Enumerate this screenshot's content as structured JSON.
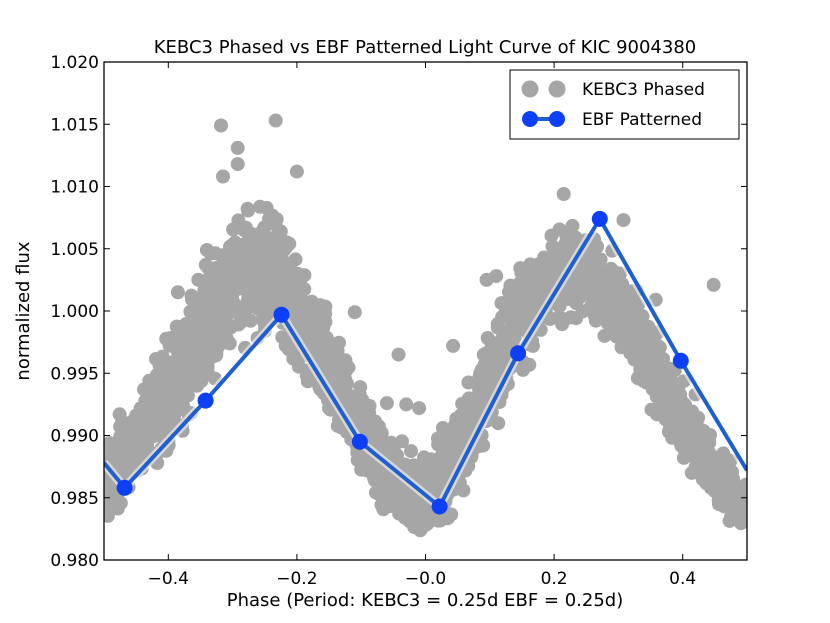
{
  "chart_data": {
    "type": "scatter",
    "title": "KEBC3 Phased vs EBF Patterned Light Curve of KIC 9004380",
    "xlabel": "Phase (Period: KEBC3 = 0.25d EBF = 0.25d)",
    "ylabel": "normalized flux",
    "xlim": [
      -0.5,
      0.5
    ],
    "ylim": [
      0.98,
      1.02
    ],
    "xticks": [
      -0.4,
      -0.2,
      0.0,
      0.2,
      0.4
    ],
    "xtick_labels": [
      "−0.4",
      "−0.2",
      "−0.0",
      "0.2",
      "0.4"
    ],
    "yticks": [
      0.98,
      0.985,
      0.99,
      0.995,
      1.0,
      1.005,
      1.01,
      1.015,
      1.02
    ],
    "ytick_labels": [
      "0.980",
      "0.985",
      "0.990",
      "0.995",
      "1.000",
      "1.005",
      "1.010",
      "1.015",
      "1.020"
    ],
    "legend_position": "top-right",
    "series": [
      {
        "name": "KEBC3 Phased",
        "kind": "scatter",
        "color": "#a6a6a6",
        "band": {
          "x": [
            -0.5,
            -0.45,
            -0.4,
            -0.35,
            -0.3,
            -0.26,
            -0.22,
            -0.18,
            -0.14,
            -0.1,
            -0.06,
            -0.02,
            0.0,
            0.02,
            0.06,
            0.1,
            0.14,
            0.18,
            0.22,
            0.26,
            0.3,
            0.34,
            0.38,
            0.42,
            0.46,
            0.5
          ],
          "low": [
            0.9815,
            0.984,
            0.9875,
            0.991,
            0.9945,
            0.9965,
            0.9955,
            0.9925,
            0.989,
            0.9855,
            0.9825,
            0.981,
            0.9808,
            0.9815,
            0.9845,
            0.989,
            0.993,
            0.9965,
            0.998,
            0.998,
            0.996,
            0.9925,
            0.989,
            0.9855,
            0.9825,
            0.9815
          ],
          "high": [
            0.991,
            0.9945,
            0.9995,
            1.005,
            1.0095,
            1.0105,
            1.0085,
            1.0035,
            0.9995,
            0.995,
            0.991,
            0.9895,
            0.989,
            0.9905,
            0.9945,
            0.9995,
            1.0045,
            1.0075,
            1.008,
            1.0075,
            1.0055,
            1.0015,
            0.997,
            0.9935,
            0.9895,
            0.987
          ]
        },
        "outliers": [
          {
            "x": -0.318,
            "y": 1.0149
          },
          {
            "x": -0.233,
            "y": 1.0153
          },
          {
            "x": -0.292,
            "y": 1.0131
          },
          {
            "x": -0.292,
            "y": 1.0118
          },
          {
            "x": -0.2,
            "y": 1.0112
          },
          {
            "x": -0.315,
            "y": 1.0108
          },
          {
            "x": -0.25,
            "y": 0.9984
          },
          {
            "x": -0.042,
            "y": 0.9965
          },
          {
            "x": 0.043,
            "y": 0.9972
          },
          {
            "x": 0.215,
            "y": 1.0094
          },
          {
            "x": 0.308,
            "y": 1.0073
          },
          {
            "x": 0.448,
            "y": 1.0021
          },
          {
            "x": -0.06,
            "y": 0.9926
          },
          {
            "x": -0.03,
            "y": 0.9925
          },
          {
            "x": -0.01,
            "y": 0.9922
          },
          {
            "x": -0.11,
            "y": 0.9999
          },
          {
            "x": 0.11,
            "y": 1.0028
          },
          {
            "x": 0.095,
            "y": 1.0025
          },
          {
            "x": -0.385,
            "y": 1.0015
          },
          {
            "x": -0.34,
            "y": 1.0049
          },
          {
            "x": 0.358,
            "y": 1.0009
          },
          {
            "x": 0.42,
            "y": 0.9933
          }
        ]
      },
      {
        "name": "EBF Patterned",
        "kind": "line+markers",
        "color": "#0d3ff5",
        "line_color": "#1f5fd0",
        "x": [
          -0.5,
          -0.468,
          -0.342,
          -0.224,
          -0.102,
          0.022,
          0.144,
          0.271,
          0.397,
          0.5
        ],
        "y": [
          0.9878,
          0.9858,
          0.9928,
          0.9997,
          0.9895,
          0.9843,
          0.9966,
          1.0074,
          0.996,
          0.9872
        ],
        "marker_mask": [
          false,
          true,
          true,
          true,
          true,
          true,
          true,
          true,
          true,
          false
        ]
      }
    ]
  }
}
